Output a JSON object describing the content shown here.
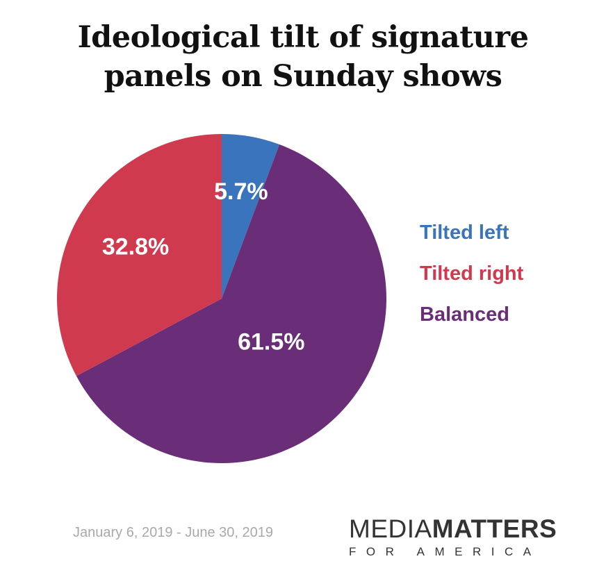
{
  "title": {
    "line1": "Ideological tilt of signature",
    "line2": "panels on Sunday shows"
  },
  "chart_data": {
    "type": "pie",
    "title": "Ideological tilt of signature panels on Sunday shows",
    "start_angle_deg": 0,
    "direction": "clockwise",
    "slices": [
      {
        "label": "Tilted left",
        "value": 5.7,
        "display": "5.7%",
        "color": "#3a74bd"
      },
      {
        "label": "Balanced",
        "value": 61.5,
        "display": "61.5%",
        "color": "#6a2d78"
      },
      {
        "label": "Tilted right",
        "value": 32.8,
        "display": "32.8%",
        "color": "#cf3a4f"
      }
    ],
    "legend": {
      "position": "right",
      "entries": [
        {
          "label": "Tilted left",
          "color": "#3a74bd"
        },
        {
          "label": "Tilted right",
          "color": "#cf3a4f"
        },
        {
          "label": "Balanced",
          "color": "#6a2d78"
        }
      ]
    }
  },
  "footer": {
    "date_range": "January 6, 2019 - June 30, 2019"
  },
  "logo": {
    "part1": "MEDIA",
    "part2": "MATTERS",
    "sub": "FOR AMERICA"
  }
}
